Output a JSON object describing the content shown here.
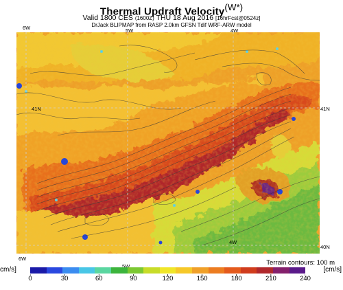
{
  "title": "Thermal Updraft Velocity",
  "title_unit": "(W*)",
  "subtitle_valid": "Valid 1800 CES",
  "subtitle_utc": "(1600Z)",
  "subtitle_date": "THU 18 Aug 2016",
  "subtitle_fcst": "[16hrFcst@0524z]",
  "subtitle2": "DrJack BLIPMAP from RASP 2.0km GFSN Tdif WRF-ARW model",
  "coords": {
    "top_6w": "6W",
    "top_5w": "5W",
    "top_4w": "4W",
    "left_41n": "41N",
    "right_41n": "41N",
    "inner_4w": "4W",
    "right_40n": "40N",
    "bottom_6w": "6W",
    "bottom_5w": "5W"
  },
  "terrain_note": "Terrain contours: 100 m",
  "colorbar": {
    "unit_left": "cm/s]",
    "unit_right": "[cm/s]",
    "labels": [
      "0",
      "30",
      "60",
      "90",
      "120",
      "150",
      "180",
      "210",
      "240"
    ],
    "colors": [
      "#1a1aa8",
      "#2a48e0",
      "#3a8cf0",
      "#48c6e6",
      "#5ad6a0",
      "#3cb43c",
      "#7cc832",
      "#c8dc28",
      "#f0e628",
      "#f6c828",
      "#f0a028",
      "#ec7c20",
      "#e45a1c",
      "#d03c1c",
      "#b0282c",
      "#84206c",
      "#5a1a8a"
    ]
  }
}
